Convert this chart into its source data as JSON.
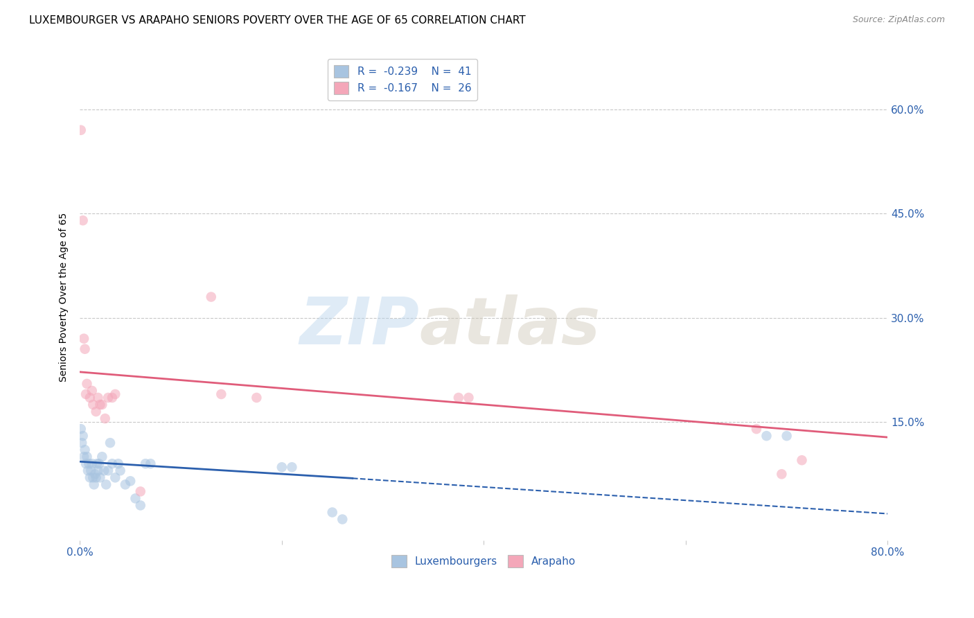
{
  "title": "LUXEMBOURGER VS ARAPAHO SENIORS POVERTY OVER THE AGE OF 65 CORRELATION CHART",
  "source": "Source: ZipAtlas.com",
  "ylabel": "Seniors Poverty Over the Age of 65",
  "xlim": [
    0.0,
    0.8
  ],
  "ylim": [
    -0.02,
    0.68
  ],
  "yticks": [
    0.0,
    0.15,
    0.3,
    0.45,
    0.6
  ],
  "ytick_labels": [
    "15.0%",
    "30.0%",
    "45.0%",
    "60.0%"
  ],
  "ytick_vals": [
    0.15,
    0.3,
    0.45,
    0.6
  ],
  "xticks": [
    0.0,
    0.2,
    0.4,
    0.6,
    0.8
  ],
  "xtick_labels": [
    "0.0%",
    "",
    "",
    "",
    "80.0%"
  ],
  "blue_scatter": [
    [
      0.001,
      0.14
    ],
    [
      0.002,
      0.12
    ],
    [
      0.003,
      0.13
    ],
    [
      0.004,
      0.1
    ],
    [
      0.005,
      0.11
    ],
    [
      0.006,
      0.09
    ],
    [
      0.007,
      0.1
    ],
    [
      0.008,
      0.08
    ],
    [
      0.009,
      0.09
    ],
    [
      0.01,
      0.07
    ],
    [
      0.011,
      0.08
    ],
    [
      0.012,
      0.09
    ],
    [
      0.013,
      0.07
    ],
    [
      0.014,
      0.06
    ],
    [
      0.015,
      0.075
    ],
    [
      0.016,
      0.07
    ],
    [
      0.017,
      0.09
    ],
    [
      0.018,
      0.08
    ],
    [
      0.019,
      0.09
    ],
    [
      0.02,
      0.07
    ],
    [
      0.022,
      0.1
    ],
    [
      0.024,
      0.08
    ],
    [
      0.026,
      0.06
    ],
    [
      0.028,
      0.08
    ],
    [
      0.03,
      0.12
    ],
    [
      0.032,
      0.09
    ],
    [
      0.035,
      0.07
    ],
    [
      0.038,
      0.09
    ],
    [
      0.04,
      0.08
    ],
    [
      0.045,
      0.06
    ],
    [
      0.05,
      0.065
    ],
    [
      0.055,
      0.04
    ],
    [
      0.06,
      0.03
    ],
    [
      0.065,
      0.09
    ],
    [
      0.07,
      0.09
    ],
    [
      0.2,
      0.085
    ],
    [
      0.21,
      0.085
    ],
    [
      0.25,
      0.02
    ],
    [
      0.26,
      0.01
    ],
    [
      0.68,
      0.13
    ],
    [
      0.7,
      0.13
    ]
  ],
  "pink_scatter": [
    [
      0.001,
      0.57
    ],
    [
      0.003,
      0.44
    ],
    [
      0.004,
      0.27
    ],
    [
      0.005,
      0.255
    ],
    [
      0.006,
      0.19
    ],
    [
      0.007,
      0.205
    ],
    [
      0.01,
      0.185
    ],
    [
      0.012,
      0.195
    ],
    [
      0.013,
      0.175
    ],
    [
      0.016,
      0.165
    ],
    [
      0.018,
      0.185
    ],
    [
      0.02,
      0.175
    ],
    [
      0.022,
      0.175
    ],
    [
      0.025,
      0.155
    ],
    [
      0.028,
      0.185
    ],
    [
      0.032,
      0.185
    ],
    [
      0.035,
      0.19
    ],
    [
      0.06,
      0.05
    ],
    [
      0.13,
      0.33
    ],
    [
      0.14,
      0.19
    ],
    [
      0.175,
      0.185
    ],
    [
      0.375,
      0.185
    ],
    [
      0.385,
      0.185
    ],
    [
      0.67,
      0.14
    ],
    [
      0.695,
      0.075
    ],
    [
      0.715,
      0.095
    ]
  ],
  "blue_line_solid": {
    "x0": 0.0,
    "y0": 0.093,
    "x1": 0.27,
    "y1": 0.069
  },
  "blue_line_dash": {
    "x0": 0.27,
    "y0": 0.069,
    "x1": 0.8,
    "y1": 0.018
  },
  "pink_line": {
    "x0": 0.0,
    "y0": 0.222,
    "x1": 0.8,
    "y1": 0.128
  },
  "watermark_zip": "ZIP",
  "watermark_atlas": "atlas",
  "blue_color": "#a8c4e0",
  "blue_line_color": "#2b5fad",
  "pink_color": "#f4a7b9",
  "pink_line_color": "#e05c7a",
  "dot_size": 110,
  "dot_alpha": 0.55,
  "background_color": "#ffffff",
  "grid_color": "#c8c8c8",
  "title_fontsize": 11,
  "axis_label_fontsize": 10,
  "tick_fontsize": 11,
  "legend_fontsize": 11,
  "source_fontsize": 9
}
